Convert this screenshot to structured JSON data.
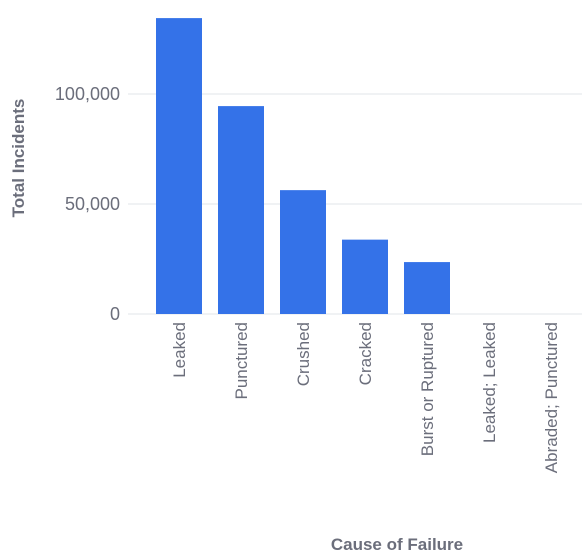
{
  "chart_data": {
    "type": "bar",
    "title": "",
    "xlabel": "Cause of Failure",
    "ylabel": "Total Incidents",
    "categories": [
      "Leaked",
      "Punctured",
      "Crushed",
      "Cracked",
      "Burst or Ruptured",
      "Leaked; Leaked",
      "Abraded; Punctured"
    ],
    "values": [
      134500,
      94500,
      56300,
      33800,
      23600,
      0,
      0
    ],
    "ylim": [
      0,
      140000
    ],
    "yticks": [
      0,
      50000,
      100000
    ],
    "ytick_labels": [
      "0",
      "50,000",
      "100,000"
    ],
    "grid": true,
    "legend": "none",
    "bar_color": "#3472e8",
    "grid_color": "#e2e4e9",
    "text_color": "#6b6e7b"
  }
}
